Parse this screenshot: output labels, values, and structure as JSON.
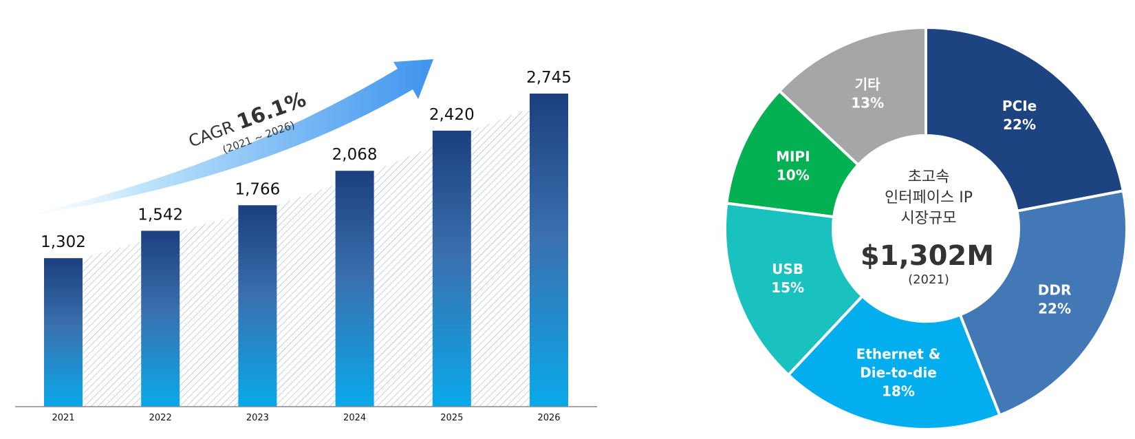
{
  "chart_data": [
    {
      "type": "bar",
      "title": "",
      "categories": [
        "2021",
        "2022",
        "2023",
        "2024",
        "2025",
        "2026"
      ],
      "values": [
        1302,
        1542,
        1766,
        2068,
        2420,
        2745
      ],
      "value_labels": [
        "1,302",
        "1,542",
        "1,766",
        "2,068",
        "2,420",
        "2,745"
      ],
      "ylim": [
        0,
        2745
      ],
      "xlabel": "",
      "ylabel": "",
      "annotation": {
        "prefix": "CAGR ",
        "value": "16.1%",
        "range": "(2021 ~ 2026)"
      }
    },
    {
      "type": "pie",
      "center_title": [
        "초고속",
        "인터페이스 IP",
        "시장규모"
      ],
      "center_value": "$1,302M",
      "center_year": "(2021)",
      "segments": [
        {
          "name": "PCIe",
          "label_lines": [
            "PCIe"
          ],
          "pct_label": "22%",
          "value": 22,
          "color": "#1d4381"
        },
        {
          "name": "DDR",
          "label_lines": [
            "DDR"
          ],
          "pct_label": "22%",
          "value": 22,
          "color": "#4378b6"
        },
        {
          "name": "Ethernet & Die-to-die",
          "label_lines": [
            "Ethernet &",
            "Die-to-die"
          ],
          "pct_label": "18%",
          "value": 18,
          "color": "#03aeee"
        },
        {
          "name": "USB",
          "label_lines": [
            "USB"
          ],
          "pct_label": "15%",
          "value": 15,
          "color": "#19c2bf"
        },
        {
          "name": "MIPI",
          "label_lines": [
            "MIPI"
          ],
          "pct_label": "10%",
          "value": 10,
          "color": "#03b052"
        },
        {
          "name": "기타",
          "label_lines": [
            "기타"
          ],
          "pct_label": "13%",
          "value": 13,
          "color": "#a6a6a6"
        }
      ]
    }
  ]
}
